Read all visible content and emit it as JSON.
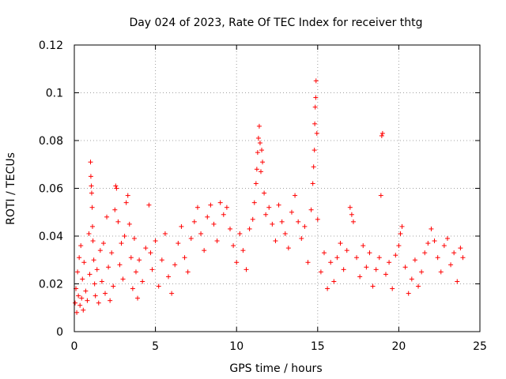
{
  "chart_data": {
    "type": "scatter",
    "title": "Day 024 of 2023, Rate Of TEC Index for receiver thtg",
    "xlabel": "GPS time / hours",
    "ylabel": "ROTI / TECUs",
    "xlim": [
      0,
      25
    ],
    "ylim": [
      0,
      0.12
    ],
    "xticks": [
      0,
      5,
      10,
      15,
      20,
      25
    ],
    "yticks": [
      0,
      0.02,
      0.04,
      0.06,
      0.08,
      0.1,
      0.12
    ],
    "xtick_labels": [
      "0",
      "5",
      "10",
      "15",
      "20",
      "25"
    ],
    "ytick_labels": [
      "0",
      "0.02",
      "0.04",
      "0.06",
      "0.08",
      "0.1",
      "0.12"
    ],
    "grid": true,
    "marker": "+",
    "color": "#ff0000",
    "series": [
      {
        "points": [
          [
            0.05,
            0.012
          ],
          [
            0.1,
            0.018
          ],
          [
            0.15,
            0.008
          ],
          [
            0.2,
            0.025
          ],
          [
            0.25,
            0.015
          ],
          [
            0.3,
            0.031
          ],
          [
            0.35,
            0.011
          ],
          [
            0.4,
            0.036
          ],
          [
            0.45,
            0.014
          ],
          [
            0.5,
            0.022
          ],
          [
            0.55,
            0.009
          ],
          [
            0.6,
            0.029
          ],
          [
            0.7,
            0.017
          ],
          [
            0.8,
            0.013
          ],
          [
            0.9,
            0.041
          ],
          [
            0.95,
            0.024
          ],
          [
            1.0,
            0.071
          ],
          [
            1.02,
            0.065
          ],
          [
            1.05,
            0.061
          ],
          [
            1.07,
            0.058
          ],
          [
            1.1,
            0.052
          ],
          [
            1.12,
            0.044
          ],
          [
            1.15,
            0.038
          ],
          [
            1.2,
            0.03
          ],
          [
            1.25,
            0.02
          ],
          [
            1.3,
            0.015
          ],
          [
            1.4,
            0.026
          ],
          [
            1.5,
            0.012
          ],
          [
            1.6,
            0.034
          ],
          [
            1.7,
            0.021
          ],
          [
            1.8,
            0.037
          ],
          [
            1.9,
            0.016
          ],
          [
            2.0,
            0.048
          ],
          [
            2.1,
            0.027
          ],
          [
            2.2,
            0.013
          ],
          [
            2.3,
            0.033
          ],
          [
            2.4,
            0.019
          ],
          [
            2.5,
            0.051
          ],
          [
            2.55,
            0.061
          ],
          [
            2.6,
            0.06
          ],
          [
            2.7,
            0.046
          ],
          [
            2.8,
            0.028
          ],
          [
            2.9,
            0.037
          ],
          [
            3.0,
            0.022
          ],
          [
            3.1,
            0.04
          ],
          [
            3.2,
            0.054
          ],
          [
            3.3,
            0.057
          ],
          [
            3.4,
            0.045
          ],
          [
            3.5,
            0.031
          ],
          [
            3.6,
            0.018
          ],
          [
            3.7,
            0.039
          ],
          [
            3.8,
            0.025
          ],
          [
            3.9,
            0.014
          ],
          [
            4.0,
            0.03
          ],
          [
            4.2,
            0.021
          ],
          [
            4.4,
            0.035
          ],
          [
            4.6,
            0.053
          ],
          [
            4.7,
            0.033
          ],
          [
            4.8,
            0.026
          ],
          [
            5.0,
            0.038
          ],
          [
            5.2,
            0.019
          ],
          [
            5.4,
            0.03
          ],
          [
            5.6,
            0.041
          ],
          [
            5.8,
            0.023
          ],
          [
            6.0,
            0.016
          ],
          [
            6.2,
            0.028
          ],
          [
            6.4,
            0.037
          ],
          [
            6.6,
            0.044
          ],
          [
            6.8,
            0.031
          ],
          [
            7.0,
            0.025
          ],
          [
            7.2,
            0.039
          ],
          [
            7.4,
            0.046
          ],
          [
            7.6,
            0.052
          ],
          [
            7.8,
            0.041
          ],
          [
            8.0,
            0.034
          ],
          [
            8.2,
            0.048
          ],
          [
            8.4,
            0.053
          ],
          [
            8.6,
            0.045
          ],
          [
            8.8,
            0.038
          ],
          [
            9.0,
            0.054
          ],
          [
            9.2,
            0.049
          ],
          [
            9.4,
            0.052
          ],
          [
            9.6,
            0.043
          ],
          [
            9.8,
            0.036
          ],
          [
            10.0,
            0.029
          ],
          [
            10.2,
            0.041
          ],
          [
            10.4,
            0.034
          ],
          [
            10.6,
            0.026
          ],
          [
            10.8,
            0.043
          ],
          [
            11.0,
            0.047
          ],
          [
            11.1,
            0.054
          ],
          [
            11.2,
            0.062
          ],
          [
            11.25,
            0.068
          ],
          [
            11.3,
            0.075
          ],
          [
            11.35,
            0.081
          ],
          [
            11.4,
            0.086
          ],
          [
            11.45,
            0.079
          ],
          [
            11.5,
            0.067
          ],
          [
            11.55,
            0.076
          ],
          [
            11.6,
            0.071
          ],
          [
            11.7,
            0.058
          ],
          [
            11.8,
            0.049
          ],
          [
            12.0,
            0.052
          ],
          [
            12.2,
            0.045
          ],
          [
            12.4,
            0.038
          ],
          [
            12.6,
            0.053
          ],
          [
            12.8,
            0.046
          ],
          [
            13.0,
            0.041
          ],
          [
            13.2,
            0.035
          ],
          [
            13.4,
            0.05
          ],
          [
            13.6,
            0.057
          ],
          [
            13.8,
            0.046
          ],
          [
            14.0,
            0.039
          ],
          [
            14.2,
            0.044
          ],
          [
            14.4,
            0.029
          ],
          [
            14.6,
            0.051
          ],
          [
            14.7,
            0.062
          ],
          [
            14.75,
            0.069
          ],
          [
            14.8,
            0.076
          ],
          [
            14.82,
            0.087
          ],
          [
            14.85,
            0.094
          ],
          [
            14.88,
            0.098
          ],
          [
            14.9,
            0.105
          ],
          [
            14.95,
            0.083
          ],
          [
            15.0,
            0.047
          ],
          [
            15.2,
            0.025
          ],
          [
            15.4,
            0.033
          ],
          [
            15.6,
            0.018
          ],
          [
            15.8,
            0.029
          ],
          [
            16.0,
            0.021
          ],
          [
            16.2,
            0.031
          ],
          [
            16.4,
            0.037
          ],
          [
            16.6,
            0.026
          ],
          [
            16.8,
            0.034
          ],
          [
            17.0,
            0.052
          ],
          [
            17.1,
            0.049
          ],
          [
            17.2,
            0.046
          ],
          [
            17.4,
            0.031
          ],
          [
            17.6,
            0.023
          ],
          [
            17.8,
            0.036
          ],
          [
            18.0,
            0.027
          ],
          [
            18.2,
            0.033
          ],
          [
            18.4,
            0.019
          ],
          [
            18.6,
            0.026
          ],
          [
            18.8,
            0.031
          ],
          [
            18.9,
            0.057
          ],
          [
            18.95,
            0.082
          ],
          [
            19.0,
            0.083
          ],
          [
            19.2,
            0.024
          ],
          [
            19.4,
            0.029
          ],
          [
            19.6,
            0.018
          ],
          [
            19.8,
            0.032
          ],
          [
            20.0,
            0.036
          ],
          [
            20.1,
            0.041
          ],
          [
            20.2,
            0.044
          ],
          [
            20.4,
            0.027
          ],
          [
            20.6,
            0.016
          ],
          [
            20.8,
            0.022
          ],
          [
            21.0,
            0.03
          ],
          [
            21.2,
            0.019
          ],
          [
            21.4,
            0.025
          ],
          [
            21.6,
            0.033
          ],
          [
            21.8,
            0.037
          ],
          [
            22.0,
            0.043
          ],
          [
            22.2,
            0.038
          ],
          [
            22.4,
            0.031
          ],
          [
            22.6,
            0.025
          ],
          [
            22.8,
            0.036
          ],
          [
            23.0,
            0.039
          ],
          [
            23.2,
            0.028
          ],
          [
            23.4,
            0.033
          ],
          [
            23.6,
            0.021
          ],
          [
            23.8,
            0.035
          ],
          [
            23.95,
            0.031
          ]
        ]
      }
    ]
  }
}
